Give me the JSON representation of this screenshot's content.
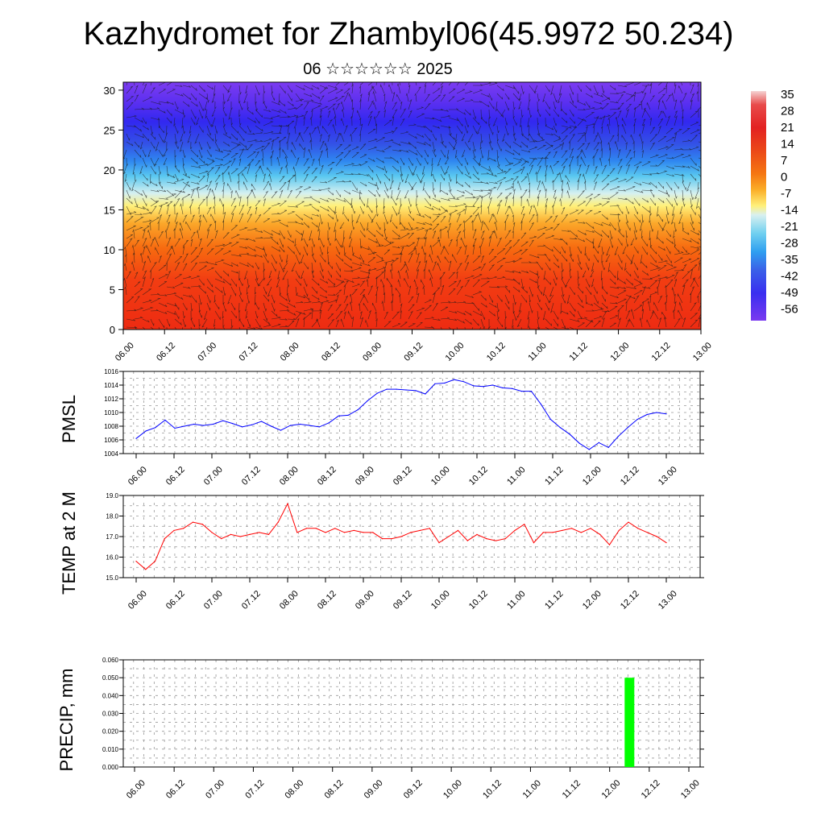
{
  "title": "Kazhydromet for Zhambyl06(45.9972 50.234)",
  "subtitle": "06 ☆☆☆☆☆☆ 2025",
  "time_labels": [
    "06.00",
    "06.12",
    "07.00",
    "07.12",
    "08.00",
    "08.12",
    "09.00",
    "09.12",
    "10.00",
    "10.12",
    "11.00",
    "11.12",
    "12.00",
    "12.12",
    "13.00"
  ],
  "chart_data": [
    {
      "type": "heatmap",
      "name": "temperature-cross-section",
      "y_ticks": [
        "0",
        "5",
        "10",
        "15",
        "20",
        "25",
        "30"
      ],
      "ylim": [
        0,
        31
      ],
      "colorbar": {
        "labels": [
          "35",
          "28",
          "21",
          "14",
          "7",
          "0",
          "-7",
          "-14",
          "-21",
          "-28",
          "-35",
          "-42",
          "-49",
          "-56"
        ],
        "colors": [
          "#f5d2d2",
          "#e84a4a",
          "#e32222",
          "#e83a1c",
          "#f06010",
          "#f88a10",
          "#fcc030",
          "#fff080",
          "#d8f0f0",
          "#70d0f0",
          "#2f9ff0",
          "#3a60e8",
          "#3a2ef0",
          "#7a3af0"
        ]
      }
    },
    {
      "type": "line",
      "ylabel": "PMSL",
      "ylim": [
        1004,
        1016
      ],
      "y_ticks": [
        "1004",
        "1006",
        "1008",
        "1010",
        "1012",
        "1014",
        "1016"
      ],
      "color": "#0000ff",
      "values": [
        1006.2,
        1007.3,
        1007.8,
        1008.9,
        1007.7,
        1008.0,
        1008.3,
        1008.1,
        1008.3,
        1008.8,
        1008.4,
        1007.9,
        1008.2,
        1008.7,
        1008.0,
        1007.4,
        1008.1,
        1008.3,
        1008.1,
        1007.9,
        1008.5,
        1009.5,
        1009.6,
        1010.4,
        1011.7,
        1012.8,
        1013.4,
        1013.4,
        1013.3,
        1013.2,
        1012.7,
        1014.2,
        1014.3,
        1014.8,
        1014.5,
        1013.9,
        1013.8,
        1014.0,
        1013.6,
        1013.5,
        1013.1,
        1013.1,
        1011.2,
        1009.0,
        1007.8,
        1006.8,
        1005.5,
        1004.6,
        1005.6,
        1004.9,
        1006.5,
        1007.8,
        1009.0,
        1009.7,
        1010.0,
        1009.8
      ]
    },
    {
      "type": "line",
      "ylabel": "TEMP at 2 M",
      "ylim": [
        15,
        19
      ],
      "y_ticks": [
        "15.0",
        "16.0",
        "17.0",
        "18.0",
        "19.0"
      ],
      "color": "#ff0000",
      "values": [
        15.8,
        15.4,
        15.8,
        16.9,
        17.3,
        17.4,
        17.7,
        17.6,
        17.2,
        16.9,
        17.1,
        17.0,
        17.1,
        17.2,
        17.1,
        17.7,
        18.6,
        17.2,
        17.4,
        17.4,
        17.2,
        17.4,
        17.2,
        17.3,
        17.2,
        17.2,
        16.9,
        16.9,
        17.0,
        17.2,
        17.3,
        17.4,
        16.7,
        17.0,
        17.3,
        16.8,
        17.1,
        16.9,
        16.8,
        16.9,
        17.3,
        17.6,
        16.7,
        17.2,
        17.2,
        17.3,
        17.4,
        17.2,
        17.4,
        17.1,
        16.6,
        17.3,
        17.7,
        17.4,
        17.2,
        17.0,
        16.7
      ]
    },
    {
      "type": "bar",
      "ylabel": "PRECIP, mm",
      "ylim": [
        0,
        0.06
      ],
      "y_ticks": [
        "0.000",
        "0.010",
        "0.020",
        "0.030",
        "0.040",
        "0.050",
        "0.060"
      ],
      "color": "#00ff00",
      "bars": [
        {
          "time": "12.06",
          "value": 0.05
        }
      ]
    }
  ]
}
